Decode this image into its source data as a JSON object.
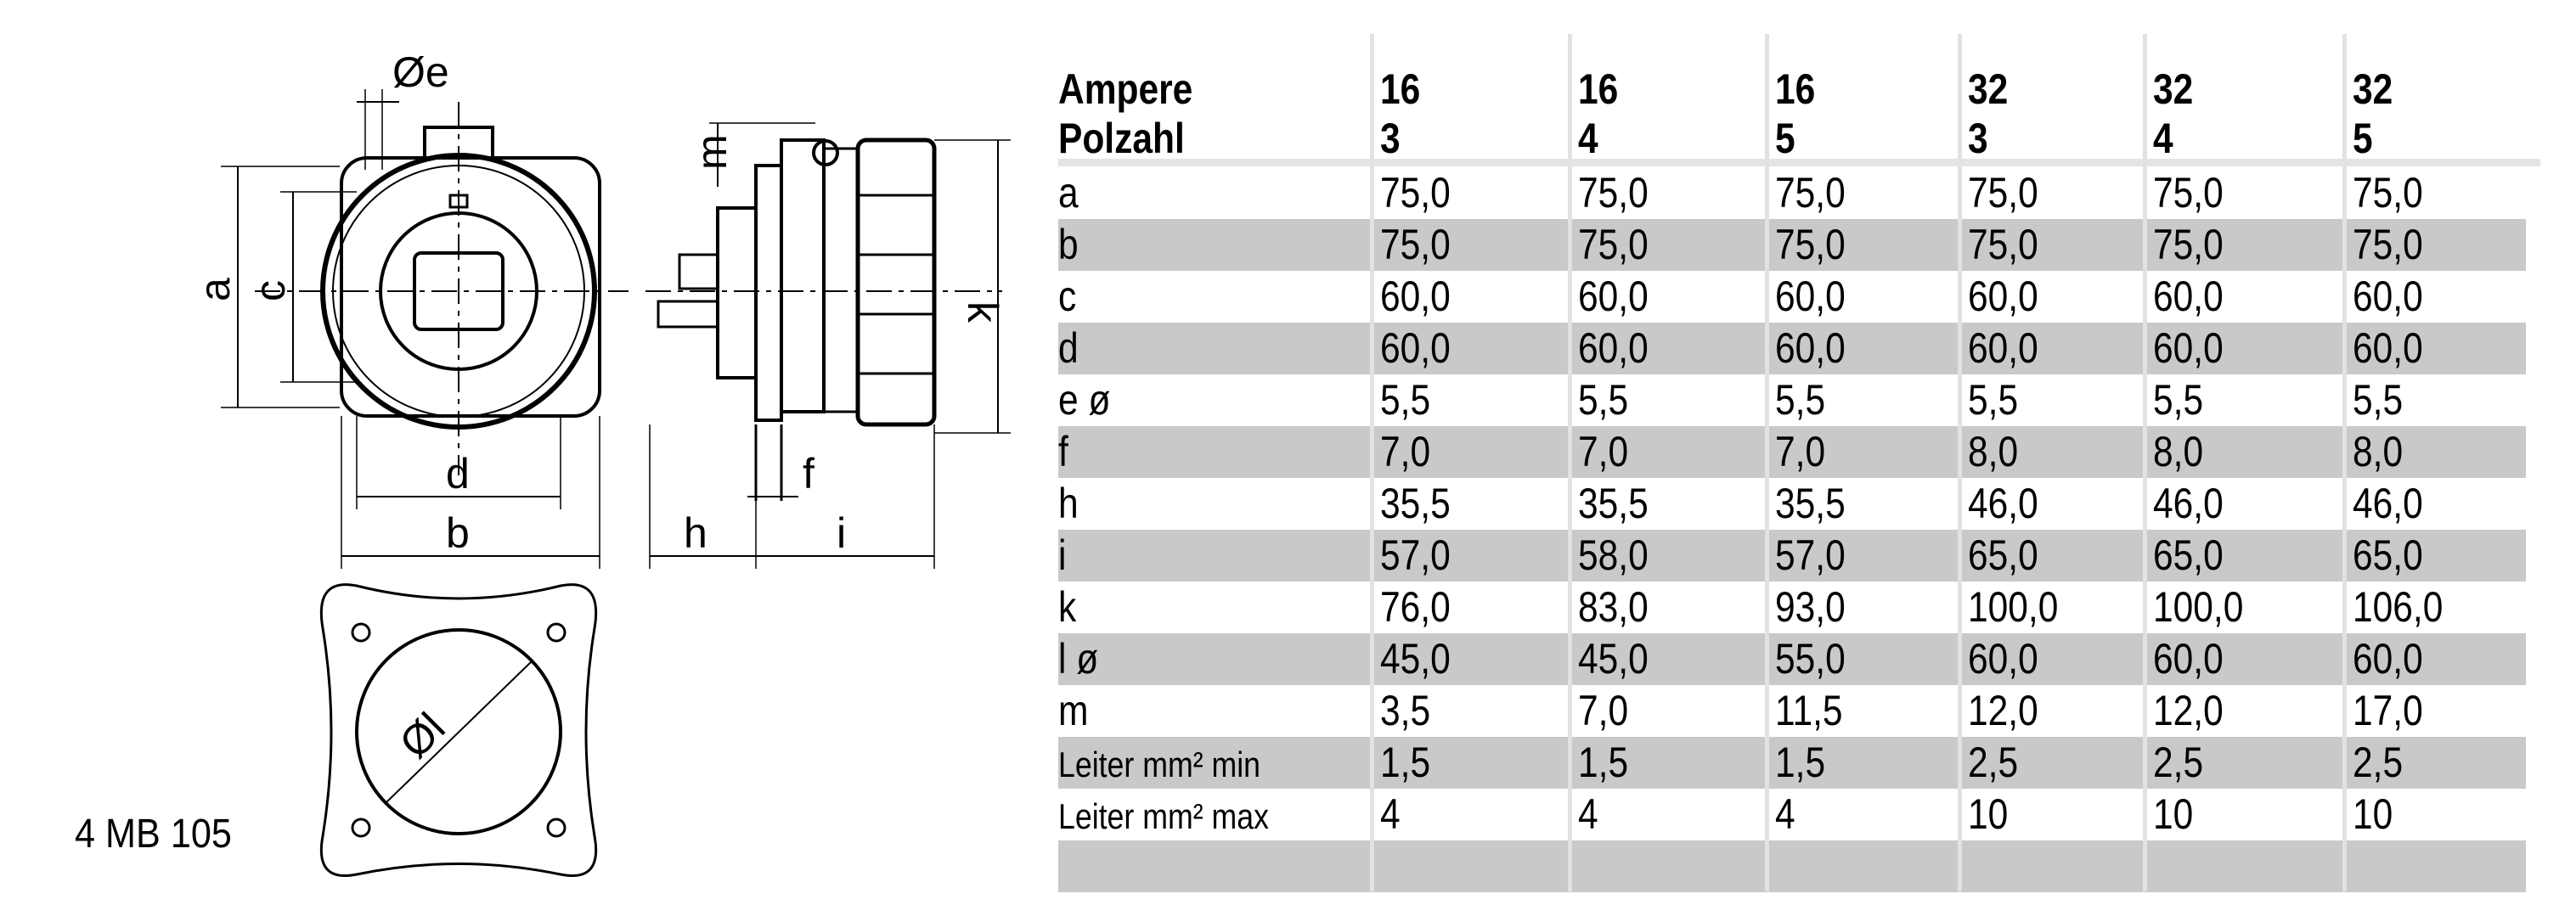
{
  "model": "4 MB 105",
  "drawing_labels": {
    "e": "Øe",
    "a": "a",
    "c": "c",
    "d": "d",
    "b": "b",
    "m": "m",
    "k": "k",
    "f": "f",
    "h": "h",
    "i": "i",
    "l": "Øl"
  },
  "table": {
    "header_labels": [
      "Ampere",
      "Polzahl"
    ],
    "columns": [
      {
        "ampere": "16",
        "polzahl": "3"
      },
      {
        "ampere": "16",
        "polzahl": "4"
      },
      {
        "ampere": "16",
        "polzahl": "5"
      },
      {
        "ampere": "32",
        "polzahl": "3"
      },
      {
        "ampere": "32",
        "polzahl": "4"
      },
      {
        "ampere": "32",
        "polzahl": "5"
      }
    ],
    "rows": [
      {
        "label": "a",
        "values": [
          "75,0",
          "75,0",
          "75,0",
          "75,0",
          "75,0",
          "75,0"
        ]
      },
      {
        "label": "b",
        "values": [
          "75,0",
          "75,0",
          "75,0",
          "75,0",
          "75,0",
          "75,0"
        ]
      },
      {
        "label": "c",
        "values": [
          "60,0",
          "60,0",
          "60,0",
          "60,0",
          "60,0",
          "60,0"
        ]
      },
      {
        "label": "d",
        "values": [
          "60,0",
          "60,0",
          "60,0",
          "60,0",
          "60,0",
          "60,0"
        ]
      },
      {
        "label": "e ø",
        "values": [
          "5,5",
          "5,5",
          "5,5",
          "5,5",
          "5,5",
          "5,5"
        ]
      },
      {
        "label": "f",
        "values": [
          "7,0",
          "7,0",
          "7,0",
          "8,0",
          "8,0",
          "8,0"
        ]
      },
      {
        "label": "h",
        "values": [
          "35,5",
          "35,5",
          "35,5",
          "46,0",
          "46,0",
          "46,0"
        ]
      },
      {
        "label": "i",
        "values": [
          "57,0",
          "58,0",
          "57,0",
          "65,0",
          "65,0",
          "65,0"
        ]
      },
      {
        "label": "k",
        "values": [
          "76,0",
          "83,0",
          "93,0",
          "100,0",
          "100,0",
          "106,0"
        ]
      },
      {
        "label": "l ø",
        "values": [
          "45,0",
          "45,0",
          "55,0",
          "60,0",
          "60,0",
          "60,0"
        ]
      },
      {
        "label": "m",
        "values": [
          "3,5",
          "7,0",
          "11,5",
          "12,0",
          "12,0",
          "17,0"
        ]
      },
      {
        "label": "Leiter mm² min",
        "values": [
          "1,5",
          "1,5",
          "1,5",
          "2,5",
          "2,5",
          "2,5"
        ]
      },
      {
        "label": "Leiter mm² max",
        "values": [
          "4",
          "4",
          "4",
          "10",
          "10",
          "10"
        ]
      },
      {
        "label": "",
        "values": [
          "",
          "",
          "",
          "",
          "",
          ""
        ]
      }
    ],
    "row_shade": "#c9c9c9"
  }
}
